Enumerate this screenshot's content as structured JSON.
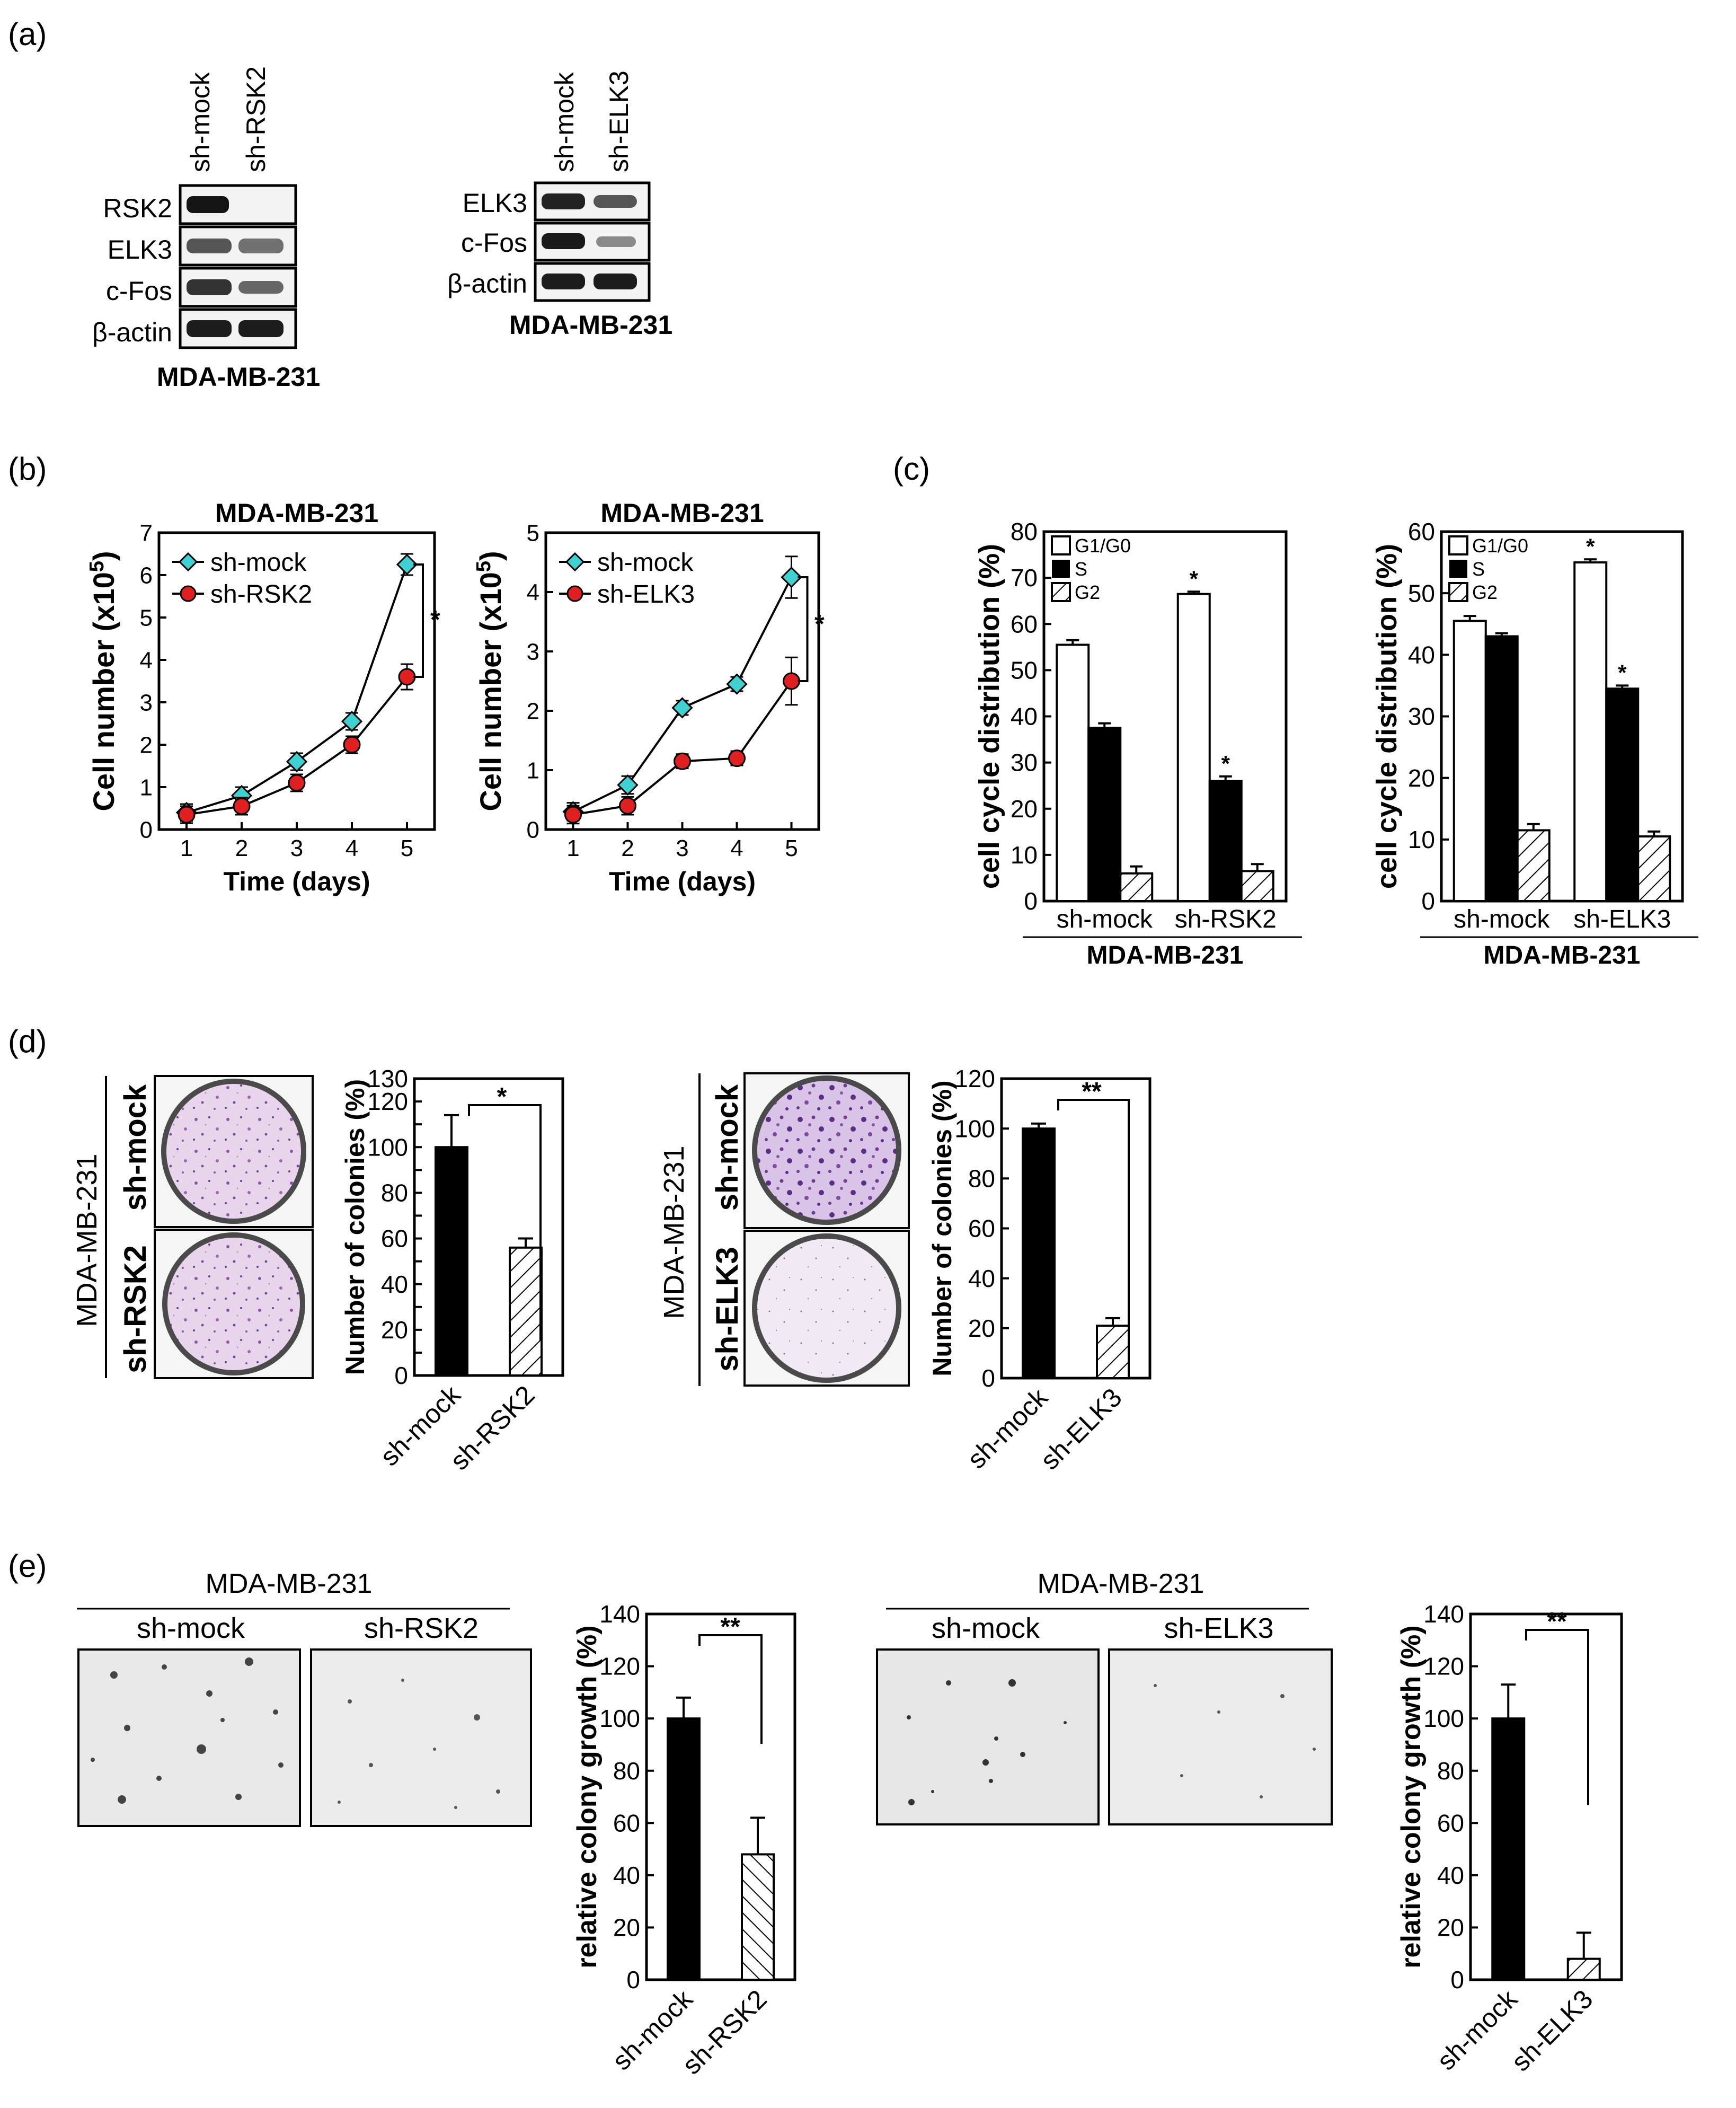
{
  "panels": {
    "a": {
      "label": "(a)",
      "blot_left": {
        "lanes": [
          "sh-mock",
          "sh-RSK2"
        ],
        "rows": [
          "RSK2",
          "ELK3",
          "c-Fos",
          "β-actin"
        ],
        "cell_line": "MDA-MB-231"
      },
      "blot_right": {
        "lanes": [
          "sh-mock",
          "sh-ELK3"
        ],
        "rows": [
          "ELK3",
          "c-Fos",
          "β-actin"
        ],
        "cell_line": "MDA-MB-231"
      }
    },
    "b": {
      "label": "(b)",
      "significance_left": "*",
      "significance_right": "*"
    },
    "c": {
      "label": "(c)",
      "legend": [
        "G1/G0",
        "S",
        "G2"
      ],
      "cell_line": "MDA-MB-231",
      "significance": "*"
    },
    "d": {
      "label": "(d)",
      "left": {
        "side_label": "MDA-MB-231",
        "well_labels": [
          "sh-mock",
          "sh-RSK2"
        ],
        "significance": "*"
      },
      "right": {
        "side_label": "MDA-MB-231",
        "well_labels": [
          "sh-mock",
          "sh-ELK3"
        ],
        "significance": "**"
      }
    },
    "e": {
      "label": "(e)",
      "left": {
        "cell_line": "MDA-MB-231",
        "image_labels": [
          "sh-mock",
          "sh-RSK2"
        ],
        "significance": "**"
      },
      "right": {
        "cell_line": "MDA-MB-231",
        "image_labels": [
          "sh-mock",
          "sh-ELK3"
        ],
        "significance": "**"
      }
    }
  },
  "chart_data": [
    {
      "id": "b-left",
      "type": "line",
      "title": "MDA-MB-231",
      "xlabel": "Time (days)",
      "ylabel": "Cell number (x10",
      "ylabel_sup": "5",
      "ylabel_end": ")",
      "x": [
        1,
        2,
        3,
        4,
        5
      ],
      "xlim": [
        0.5,
        5.5
      ],
      "ylim": [
        0,
        7
      ],
      "yticks": [
        0,
        1,
        2,
        3,
        4,
        5,
        6,
        7
      ],
      "series": [
        {
          "name": "sh-mock",
          "color": "#3fd1d1",
          "marker": "diamond",
          "values": [
            0.4,
            0.8,
            1.6,
            2.55,
            6.25
          ],
          "errors": [
            0.2,
            0.2,
            0.2,
            0.2,
            0.25
          ]
        },
        {
          "name": "sh-RSK2",
          "color": "#e02020",
          "marker": "circle",
          "values": [
            0.35,
            0.55,
            1.1,
            2.0,
            3.6
          ],
          "errors": [
            0.2,
            0.2,
            0.2,
            0.2,
            0.3
          ]
        }
      ]
    },
    {
      "id": "b-right",
      "type": "line",
      "title": "MDA-MB-231",
      "xlabel": "Time (days)",
      "ylabel": "Cell number (x10",
      "ylabel_sup": "5",
      "ylabel_end": ")",
      "x": [
        1,
        2,
        3,
        4,
        5
      ],
      "xlim": [
        0.5,
        5.5
      ],
      "ylim": [
        0,
        5
      ],
      "yticks": [
        0,
        1,
        2,
        3,
        4,
        5
      ],
      "series": [
        {
          "name": "sh-mock",
          "color": "#3fd1d1",
          "marker": "diamond",
          "values": [
            0.3,
            0.75,
            2.05,
            2.45,
            4.25
          ],
          "errors": [
            0.15,
            0.15,
            0.12,
            0.12,
            0.35
          ]
        },
        {
          "name": "sh-ELK3",
          "color": "#e02020",
          "marker": "circle",
          "values": [
            0.25,
            0.4,
            1.15,
            1.2,
            2.5
          ],
          "errors": [
            0.15,
            0.15,
            0.12,
            0.12,
            0.4
          ]
        }
      ]
    },
    {
      "id": "c-left",
      "type": "bar",
      "ylabel": "cell cycle distribution (%)",
      "categories": [
        "sh-mock",
        "sh-RSK2"
      ],
      "group_label": "MDA-MB-231",
      "ylim": [
        0,
        80
      ],
      "yticks": [
        0,
        10,
        20,
        30,
        40,
        50,
        60,
        70,
        80
      ],
      "series": [
        {
          "name": "G1/G0",
          "fill": "open",
          "values": [
            55.5,
            66.5
          ],
          "errors": [
            1.0,
            0.5
          ]
        },
        {
          "name": "S",
          "fill": "solid",
          "values": [
            37.5,
            26.0
          ],
          "errors": [
            1.0,
            1.0
          ]
        },
        {
          "name": "G2",
          "fill": "hatch",
          "values": [
            6.0,
            6.5
          ],
          "errors": [
            1.5,
            1.5
          ]
        }
      ],
      "marks": [
        [
          1,
          0
        ],
        [
          1,
          1
        ]
      ]
    },
    {
      "id": "c-right",
      "type": "bar",
      "ylabel": "cell cycle distribution (%)",
      "categories": [
        "sh-mock",
        "sh-ELK3"
      ],
      "group_label": "MDA-MB-231",
      "ylim": [
        0,
        60
      ],
      "yticks": [
        0,
        10,
        20,
        30,
        40,
        50,
        60
      ],
      "series": [
        {
          "name": "G1/G0",
          "fill": "open",
          "values": [
            45.5,
            55.0
          ],
          "errors": [
            0.8,
            0.5
          ]
        },
        {
          "name": "S",
          "fill": "solid",
          "values": [
            43.0,
            34.5
          ],
          "errors": [
            0.5,
            0.5
          ]
        },
        {
          "name": "G2",
          "fill": "hatch",
          "values": [
            11.5,
            10.5
          ],
          "errors": [
            1.0,
            0.8
          ]
        }
      ],
      "marks": [
        [
          1,
          0
        ],
        [
          1,
          1
        ]
      ]
    },
    {
      "id": "d-left",
      "type": "bar",
      "ylabel": "Number of colonies (%)",
      "categories": [
        "sh-mock",
        "sh-RSK2"
      ],
      "fills": [
        "solid",
        "hatch"
      ],
      "values": [
        100,
        56
      ],
      "errors": [
        14,
        4
      ],
      "ylim": [
        0,
        130
      ],
      "yticks": [
        0,
        10,
        20,
        30,
        40,
        50,
        60,
        70,
        80,
        90,
        100,
        110,
        120,
        130
      ],
      "ytick_labels": [
        0,
        20,
        40,
        60,
        80,
        100,
        120,
        130
      ]
    },
    {
      "id": "d-right",
      "type": "bar",
      "ylabel": "Number of colonies (%)",
      "categories": [
        "sh-mock",
        "sh-ELK3"
      ],
      "fills": [
        "solid",
        "hatch"
      ],
      "values": [
        100,
        21
      ],
      "errors": [
        2,
        3
      ],
      "ylim": [
        0,
        120
      ],
      "yticks": [
        0,
        20,
        40,
        60,
        80,
        100,
        120
      ]
    },
    {
      "id": "e-left",
      "type": "bar",
      "ylabel": "relative colony growth (%)",
      "categories": [
        "sh-mock",
        "sh-RSK2"
      ],
      "fills": [
        "solid",
        "hatch-back"
      ],
      "values": [
        100,
        48
      ],
      "errors": [
        8,
        14
      ],
      "ylim": [
        0,
        140
      ],
      "yticks": [
        0,
        20,
        40,
        60,
        80,
        100,
        120,
        140
      ]
    },
    {
      "id": "e-right",
      "type": "bar",
      "ylabel": "relative colony growth (%)",
      "categories": [
        "sh-mock",
        "sh-ELK3"
      ],
      "fills": [
        "solid",
        "hatch"
      ],
      "values": [
        100,
        8
      ],
      "errors": [
        13,
        10
      ],
      "ylim": [
        0,
        140
      ],
      "yticks": [
        0,
        20,
        40,
        60,
        80,
        100,
        120,
        140
      ]
    }
  ]
}
